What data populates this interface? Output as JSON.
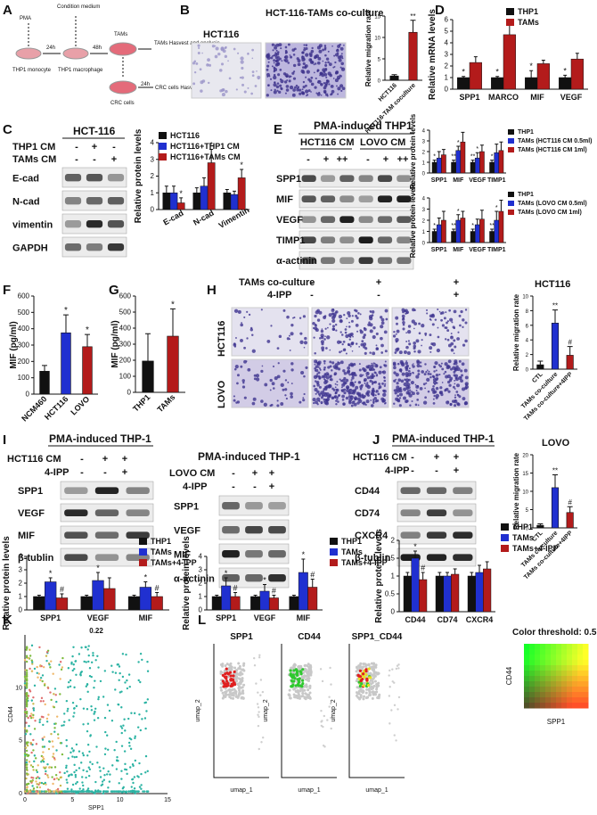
{
  "panels": [
    "A",
    "B",
    "C",
    "D",
    "E",
    "F",
    "G",
    "H",
    "I",
    "J",
    "K",
    "L"
  ],
  "A": {
    "steps": [
      "PMA",
      "Condition medium",
      "24h",
      "48h",
      "THP1 monocyte",
      "THP1 macrophage",
      "TAMs",
      "TAMs Hasvest and analysis",
      "24h",
      "CRC cells Hasvest and analysis",
      "CRC cells"
    ]
  },
  "B": {
    "img_labels": [
      "HCT116",
      "HCT-116-TAMs co-culture"
    ]
  },
  "C": {
    "title": "HCT-116",
    "rows": [
      "THP1 CM",
      "TAMs CM"
    ],
    "signs": [
      [
        "-",
        "+",
        "-"
      ],
      [
        "-",
        "-",
        "+"
      ]
    ],
    "bands": [
      "E-cad",
      "N-cad",
      "vimentin",
      "GAPDH"
    ]
  },
  "E": {
    "title": "PMA-induced THP1",
    "groups": [
      "HCT116 CM",
      "LOVO CM"
    ],
    "signs": [
      "-",
      "+",
      "++",
      "-",
      "+",
      "++"
    ],
    "bands": [
      "SPP1",
      "MIF",
      "VEGF",
      "TIMP1",
      "α-actinin"
    ]
  },
  "H": {
    "rows": [
      "TAMs co-culture",
      "4-IPP"
    ],
    "signs": [
      [
        "-",
        "+",
        "+"
      ],
      [
        "-",
        "-",
        "+"
      ]
    ],
    "img_rows": [
      "HCT116",
      "LOVO"
    ]
  },
  "I": {
    "title": "PMA-induced THP-1",
    "rows": [
      "HCT116 CM",
      "4-IPP"
    ],
    "signs": [
      [
        "-",
        "+",
        "+"
      ],
      [
        "-",
        "-",
        "+"
      ]
    ],
    "bands": [
      "SPP1",
      "VEGF",
      "MIF",
      "β-tublin"
    ],
    "title2": "PMA-induced THP-1",
    "rows2": [
      "LOVO CM",
      "4-IPP"
    ],
    "signs2": [
      [
        "-",
        "+",
        "+"
      ],
      [
        "-",
        "-",
        "+"
      ]
    ],
    "bands2": [
      "SPP1",
      "VEGF",
      "MIF",
      "α-actinin"
    ]
  },
  "J": {
    "title": "PMA-induced THP-1",
    "rows": [
      "HCT116 CM",
      "4-IPP"
    ],
    "signs": [
      [
        "-",
        "+",
        "+"
      ],
      [
        "-",
        "-",
        "+"
      ]
    ],
    "bands": [
      "CD44",
      "CD74",
      "CXCR4",
      "β-tublin"
    ]
  },
  "L": {
    "titles": [
      "SPP1",
      "CD44",
      "SPP1_CD44"
    ],
    "xlab": "umap_1",
    "ylab": "umap_2",
    "threshold": "Color threshold: 0.5",
    "grid_x": "SPP1",
    "grid_y": "CD44"
  },
  "chart_data": [
    {
      "id": "B",
      "type": "bar",
      "ylabel": "Relative migration rate",
      "categories": [
        "HCT116",
        "HCT116-TAM coculture"
      ],
      "values": [
        1.0,
        11.2
      ],
      "errors": [
        0.3,
        2.8
      ],
      "ylim": [
        0,
        15
      ],
      "yticks": [
        0,
        5,
        10,
        15
      ],
      "stars": [
        "",
        "**"
      ],
      "colors": [
        "#111111",
        "#b31b1b"
      ]
    },
    {
      "id": "C",
      "type": "bar",
      "ylabel": "Relative protein levels",
      "categories": [
        "E-cad",
        "N-cad",
        "Vimentin"
      ],
      "series": [
        {
          "name": "HCT116",
          "values": [
            1.0,
            1.0,
            1.0
          ],
          "errors": [
            0.4,
            0.3,
            0.2
          ]
        },
        {
          "name": "HCT116+THP1 CM",
          "values": [
            1.0,
            1.4,
            0.9
          ],
          "errors": [
            0.4,
            0.5,
            0.2
          ]
        },
        {
          "name": "HCT116+TAMs CM",
          "values": [
            0.4,
            2.8,
            1.9
          ],
          "errors": [
            0.3,
            0.8,
            0.5
          ]
        }
      ],
      "stars": [
        [
          "",
          "",
          "*"
        ],
        [
          "",
          "",
          "*"
        ],
        [
          "",
          "",
          "*"
        ]
      ],
      "colors": [
        "#111111",
        "#2030d0",
        "#b31b1b"
      ],
      "ylim": [
        0,
        4
      ],
      "yticks": [
        0,
        1,
        2,
        3,
        4
      ]
    },
    {
      "id": "D",
      "type": "bar",
      "ylabel": "Relative mRNA levels",
      "categories": [
        "SPP1",
        "MARCO",
        "MIF",
        "VEGF"
      ],
      "series": [
        {
          "name": "THP1",
          "values": [
            1.0,
            1.0,
            1.0,
            1.0
          ],
          "errors": [
            0.1,
            0.1,
            0.6,
            0.2
          ]
        },
        {
          "name": "TAMs",
          "values": [
            2.3,
            4.7,
            2.2,
            2.6
          ],
          "errors": [
            0.5,
            0.8,
            0.3,
            0.5
          ]
        }
      ],
      "colors": [
        "#111111",
        "#b31b1b"
      ],
      "ylim": [
        0,
        6
      ],
      "yticks": [
        0,
        1,
        2,
        3,
        4,
        5,
        6
      ],
      "stars": [
        "*",
        "*",
        "*",
        "*"
      ]
    },
    {
      "id": "E1",
      "type": "bar",
      "ylabel": "Relative protein levels",
      "categories": [
        "SPP1",
        "MIF",
        "VEGF",
        "TIMP1"
      ],
      "series": [
        {
          "name": "THP1",
          "values": [
            1,
            1,
            1,
            1
          ],
          "errors": [
            0.2,
            0.2,
            0.2,
            0.2
          ]
        },
        {
          "name": "TAMs (HCT116 CM 0.5ml)",
          "values": [
            1.4,
            2.1,
            1.4,
            1.9
          ],
          "errors": [
            0.6,
            0.4,
            0.5,
            0.8
          ]
        },
        {
          "name": "TAMs (HCT116 CM 1ml)",
          "values": [
            1.7,
            2.9,
            2.0,
            2.1
          ],
          "errors": [
            0.5,
            0.9,
            0.6,
            0.8
          ]
        }
      ],
      "colors": [
        "#111111",
        "#2030d0",
        "#b31b1b"
      ],
      "ylim": [
        0,
        4
      ],
      "yticks": [
        0,
        1,
        2,
        3,
        4
      ],
      "stars": [
        [
          "*",
          "",
          ""
        ],
        [
          "**",
          "*",
          ""
        ],
        [
          "**",
          "*",
          ""
        ],
        [
          "*",
          "",
          ""
        ]
      ]
    },
    {
      "id": "E2",
      "type": "bar",
      "ylabel": "Relative protein levels",
      "categories": [
        "SPP1",
        "MIF",
        "VEGF",
        "TIMP1"
      ],
      "series": [
        {
          "name": "THP1",
          "values": [
            1,
            1,
            1,
            1
          ],
          "errors": [
            0.2,
            0.2,
            0.2,
            0.2
          ]
        },
        {
          "name": "TAMs (LOVO CM 0.5ml)",
          "values": [
            1.6,
            2.0,
            1.6,
            2.0
          ],
          "errors": [
            0.6,
            0.5,
            0.5,
            0.8
          ]
        },
        {
          "name": "TAMs (LOVO CM 1ml)",
          "values": [
            2.0,
            2.2,
            2.1,
            2.8
          ],
          "errors": [
            0.8,
            0.6,
            0.8,
            1.0
          ]
        }
      ],
      "colors": [
        "#111111",
        "#2030d0",
        "#b31b1b"
      ],
      "ylim": [
        0,
        4
      ],
      "yticks": [
        0,
        1,
        2,
        3,
        4
      ],
      "stars": [
        [
          "*",
          "",
          ""
        ],
        [
          "**",
          "*",
          ""
        ],
        [
          "*",
          "",
          ""
        ],
        [
          "**",
          "*",
          ""
        ]
      ]
    },
    {
      "id": "F",
      "type": "bar",
      "ylabel": "MIF (pg/ml)",
      "categories": [
        "NCM460",
        "HCT116",
        "LOVO"
      ],
      "values": [
        140,
        375,
        290
      ],
      "errors": [
        35,
        110,
        75
      ],
      "ylim": [
        0,
        600
      ],
      "yticks": [
        0,
        100,
        200,
        300,
        400,
        500,
        600
      ],
      "stars": [
        "",
        "*",
        "*"
      ],
      "colors": [
        "#111111",
        "#2030d0",
        "#b31b1b"
      ]
    },
    {
      "id": "G",
      "type": "bar",
      "ylabel": "MIF (pg/ml)",
      "categories": [
        "THP1",
        "TAMs"
      ],
      "values": [
        195,
        350
      ],
      "errors": [
        170,
        170
      ],
      "ylim": [
        0,
        600
      ],
      "yticks": [
        0,
        100,
        200,
        300,
        400,
        500,
        600
      ],
      "stars": [
        "",
        "*"
      ],
      "colors": [
        "#111111",
        "#b31b1b"
      ]
    },
    {
      "id": "H1",
      "type": "bar",
      "title": "HCT116",
      "ylabel": "Relative migration rate",
      "categories": [
        "CTL",
        "TAMs co-culture",
        "TAMs co-culture+4IPP"
      ],
      "values": [
        0.6,
        6.3,
        1.9
      ],
      "errors": [
        0.5,
        1.8,
        1.2
      ],
      "ylim": [
        0,
        10
      ],
      "yticks": [
        0,
        2,
        4,
        6,
        8,
        10
      ],
      "stars": [
        "",
        "**",
        "#"
      ],
      "colors": [
        "#111111",
        "#2030d0",
        "#b31b1b"
      ]
    },
    {
      "id": "H2",
      "type": "bar",
      "title": "LOVO",
      "ylabel": "Relative migration rate",
      "categories": [
        "CTL",
        "TAMs co-culture",
        "TAMs co-culture+4IPP"
      ],
      "values": [
        0.7,
        11.0,
        4.2
      ],
      "errors": [
        0.4,
        3.5,
        1.6
      ],
      "ylim": [
        0,
        20
      ],
      "yticks": [
        0,
        5,
        10,
        15,
        20
      ],
      "stars": [
        "",
        "**",
        "#"
      ],
      "colors": [
        "#111111",
        "#2030d0",
        "#b31b1b"
      ]
    },
    {
      "id": "I1",
      "type": "bar",
      "ylabel": "Relative protein levels",
      "categories": [
        "SPP1",
        "VEGF",
        "MIF"
      ],
      "series": [
        {
          "name": "THP1",
          "values": [
            1,
            1,
            1
          ],
          "errors": [
            0.1,
            0.1,
            0.1
          ]
        },
        {
          "name": "TAMs",
          "values": [
            2.1,
            2.2,
            1.7
          ],
          "errors": [
            0.3,
            0.6,
            0.4
          ]
        },
        {
          "name": "TAMs+4-IPP",
          "values": [
            0.9,
            1.6,
            1.0
          ],
          "errors": [
            0.3,
            0.8,
            0.3
          ]
        }
      ],
      "colors": [
        "#111111",
        "#2030d0",
        "#b31b1b"
      ],
      "ylim": [
        0,
        4
      ],
      "yticks": [
        0,
        1,
        2,
        3,
        4
      ],
      "stars": [
        [
          "",
          "*",
          "#"
        ],
        [
          "",
          "*",
          ""
        ],
        [
          "",
          "*",
          "#"
        ]
      ]
    },
    {
      "id": "I2",
      "type": "bar",
      "ylabel": "Relative protein levels",
      "categories": [
        "SPP1",
        "VEGF",
        "MIF"
      ],
      "series": [
        {
          "name": "THP1",
          "values": [
            1,
            1,
            1
          ],
          "errors": [
            0.1,
            0.1,
            0.1
          ]
        },
        {
          "name": "TAMs",
          "values": [
            1.8,
            1.4,
            2.8
          ],
          "errors": [
            0.6,
            0.5,
            1.0
          ]
        },
        {
          "name": "TAMs+4-IPP",
          "values": [
            1.0,
            0.9,
            1.7
          ],
          "errors": [
            0.3,
            0.2,
            0.6
          ]
        }
      ],
      "colors": [
        "#111111",
        "#2030d0",
        "#b31b1b"
      ],
      "ylim": [
        0,
        4
      ],
      "yticks": [
        0,
        1,
        2,
        3,
        4
      ],
      "stars": [
        [
          "",
          "*",
          "#"
        ],
        [
          "",
          "*",
          "#"
        ],
        [
          "",
          "*",
          "#"
        ]
      ]
    },
    {
      "id": "J",
      "type": "bar",
      "ylabel": "Relative protein levels",
      "categories": [
        "CD44",
        "CD74",
        "CXCR4"
      ],
      "series": [
        {
          "name": "THP1",
          "values": [
            1,
            1,
            1
          ],
          "errors": [
            0.1,
            0.1,
            0.1
          ]
        },
        {
          "name": "TAMs",
          "values": [
            1.5,
            1.0,
            1.1
          ],
          "errors": [
            0.2,
            0.1,
            0.2
          ]
        },
        {
          "name": "TAMs+4-IPP",
          "values": [
            0.9,
            1.05,
            1.2
          ],
          "errors": [
            0.2,
            0.15,
            0.2
          ]
        }
      ],
      "colors": [
        "#111111",
        "#2030d0",
        "#b31b1b"
      ],
      "ylim": [
        0,
        2.0
      ],
      "yticks": [
        0,
        0.5,
        1.0,
        1.5,
        2.0
      ],
      "stars": [
        [
          "",
          "*",
          "#"
        ],
        [
          "",
          "",
          ""
        ],
        [
          "",
          "",
          ""
        ]
      ]
    },
    {
      "id": "K",
      "type": "scatter",
      "title": "0.22",
      "xlabel": "SPP1",
      "ylabel": "CD44",
      "xlim": [
        0,
        15
      ],
      "ylim": [
        0,
        15
      ],
      "xticks": [
        0,
        5,
        10,
        15
      ],
      "yticks": [
        0,
        5,
        10
      ],
      "colors": [
        "#2bb3a3",
        "#f0b86a",
        "#e06f6f",
        "#7dbb3d",
        "#c8b84a"
      ]
    }
  ]
}
